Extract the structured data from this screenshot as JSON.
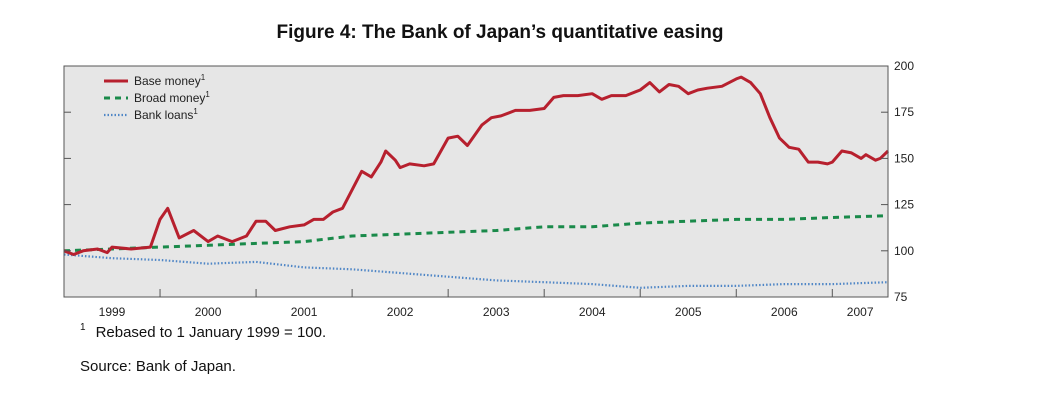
{
  "title": "Figure 4: The Bank of Japan’s quantitative easing",
  "footnote": {
    "marker": "1",
    "text": "Rebased to 1 January 1999 = 100."
  },
  "source": "Source: Bank of Japan.",
  "chart_data": {
    "type": "line",
    "x_start": 1999.0,
    "x_end": 2007.58,
    "ylim": [
      75,
      200
    ],
    "yticks": [
      75,
      100,
      125,
      150,
      175,
      200
    ],
    "xtick_labels": [
      "1999",
      "2000",
      "2001",
      "2002",
      "2003",
      "2004",
      "2005",
      "2006",
      "2007"
    ],
    "grid": false,
    "legend_position": "top-left",
    "background": "#e6e6e6",
    "series": [
      {
        "name": "Base money",
        "sup": "1",
        "color": "#b7202e",
        "style": "solid",
        "points": [
          [
            1999.0,
            100
          ],
          [
            1999.1,
            98
          ],
          [
            1999.2,
            100
          ],
          [
            1999.35,
            101
          ],
          [
            1999.45,
            99
          ],
          [
            1999.5,
            102
          ],
          [
            1999.7,
            101
          ],
          [
            1999.9,
            102
          ],
          [
            2000.0,
            117
          ],
          [
            2000.08,
            123
          ],
          [
            2000.2,
            107
          ],
          [
            2000.35,
            111
          ],
          [
            2000.5,
            105
          ],
          [
            2000.6,
            108
          ],
          [
            2000.75,
            105
          ],
          [
            2000.9,
            108
          ],
          [
            2001.0,
            116
          ],
          [
            2001.1,
            116
          ],
          [
            2001.2,
            111
          ],
          [
            2001.35,
            113
          ],
          [
            2001.5,
            114
          ],
          [
            2001.6,
            117
          ],
          [
            2001.7,
            117
          ],
          [
            2001.8,
            121
          ],
          [
            2001.9,
            123
          ],
          [
            2002.0,
            133
          ],
          [
            2002.1,
            143
          ],
          [
            2002.2,
            140
          ],
          [
            2002.3,
            148
          ],
          [
            2002.35,
            154
          ],
          [
            2002.45,
            149
          ],
          [
            2002.5,
            145
          ],
          [
            2002.6,
            147
          ],
          [
            2002.75,
            146
          ],
          [
            2002.85,
            147
          ],
          [
            2003.0,
            161
          ],
          [
            2003.1,
            162
          ],
          [
            2003.2,
            157
          ],
          [
            2003.35,
            168
          ],
          [
            2003.45,
            172
          ],
          [
            2003.55,
            173
          ],
          [
            2003.7,
            176
          ],
          [
            2003.85,
            176
          ],
          [
            2004.0,
            177
          ],
          [
            2004.1,
            183
          ],
          [
            2004.2,
            184
          ],
          [
            2004.35,
            184
          ],
          [
            2004.5,
            185
          ],
          [
            2004.6,
            182
          ],
          [
            2004.7,
            184
          ],
          [
            2004.85,
            184
          ],
          [
            2005.0,
            187
          ],
          [
            2005.1,
            191
          ],
          [
            2005.2,
            186
          ],
          [
            2005.3,
            190
          ],
          [
            2005.4,
            189
          ],
          [
            2005.5,
            185
          ],
          [
            2005.6,
            187
          ],
          [
            2005.7,
            188
          ],
          [
            2005.85,
            189
          ],
          [
            2006.0,
            193
          ],
          [
            2006.05,
            194
          ],
          [
            2006.15,
            191
          ],
          [
            2006.25,
            185
          ],
          [
            2006.35,
            172
          ],
          [
            2006.45,
            161
          ],
          [
            2006.55,
            156
          ],
          [
            2006.65,
            155
          ],
          [
            2006.75,
            148
          ],
          [
            2006.85,
            148
          ],
          [
            2006.95,
            147
          ],
          [
            2007.0,
            148
          ],
          [
            2007.1,
            154
          ],
          [
            2007.2,
            153
          ],
          [
            2007.3,
            150
          ],
          [
            2007.35,
            152
          ],
          [
            2007.45,
            149
          ],
          [
            2007.5,
            150
          ],
          [
            2007.58,
            154
          ]
        ]
      },
      {
        "name": "Broad money",
        "sup": "1",
        "color": "#1a8a4a",
        "style": "dashed",
        "points": [
          [
            1999.0,
            100
          ],
          [
            1999.5,
            101
          ],
          [
            2000.0,
            102
          ],
          [
            2000.5,
            103
          ],
          [
            2001.0,
            104
          ],
          [
            2001.5,
            105
          ],
          [
            2002.0,
            108
          ],
          [
            2002.5,
            109
          ],
          [
            2003.0,
            110
          ],
          [
            2003.5,
            111
          ],
          [
            2004.0,
            113
          ],
          [
            2004.5,
            113
          ],
          [
            2005.0,
            115
          ],
          [
            2005.5,
            116
          ],
          [
            2006.0,
            117
          ],
          [
            2006.5,
            117
          ],
          [
            2007.0,
            118
          ],
          [
            2007.58,
            119
          ]
        ]
      },
      {
        "name": "Bank loans",
        "sup": "1",
        "color": "#4f86c6",
        "style": "dotted",
        "points": [
          [
            1999.0,
            98
          ],
          [
            1999.5,
            96
          ],
          [
            2000.0,
            95
          ],
          [
            2000.5,
            93
          ],
          [
            2001.0,
            94
          ],
          [
            2001.5,
            91
          ],
          [
            2002.0,
            90
          ],
          [
            2002.5,
            88
          ],
          [
            2003.0,
            86
          ],
          [
            2003.5,
            84
          ],
          [
            2004.0,
            83
          ],
          [
            2004.5,
            82
          ],
          [
            2005.0,
            80
          ],
          [
            2005.5,
            81
          ],
          [
            2006.0,
            81
          ],
          [
            2006.5,
            82
          ],
          [
            2007.0,
            82
          ],
          [
            2007.58,
            83
          ]
        ]
      }
    ]
  }
}
